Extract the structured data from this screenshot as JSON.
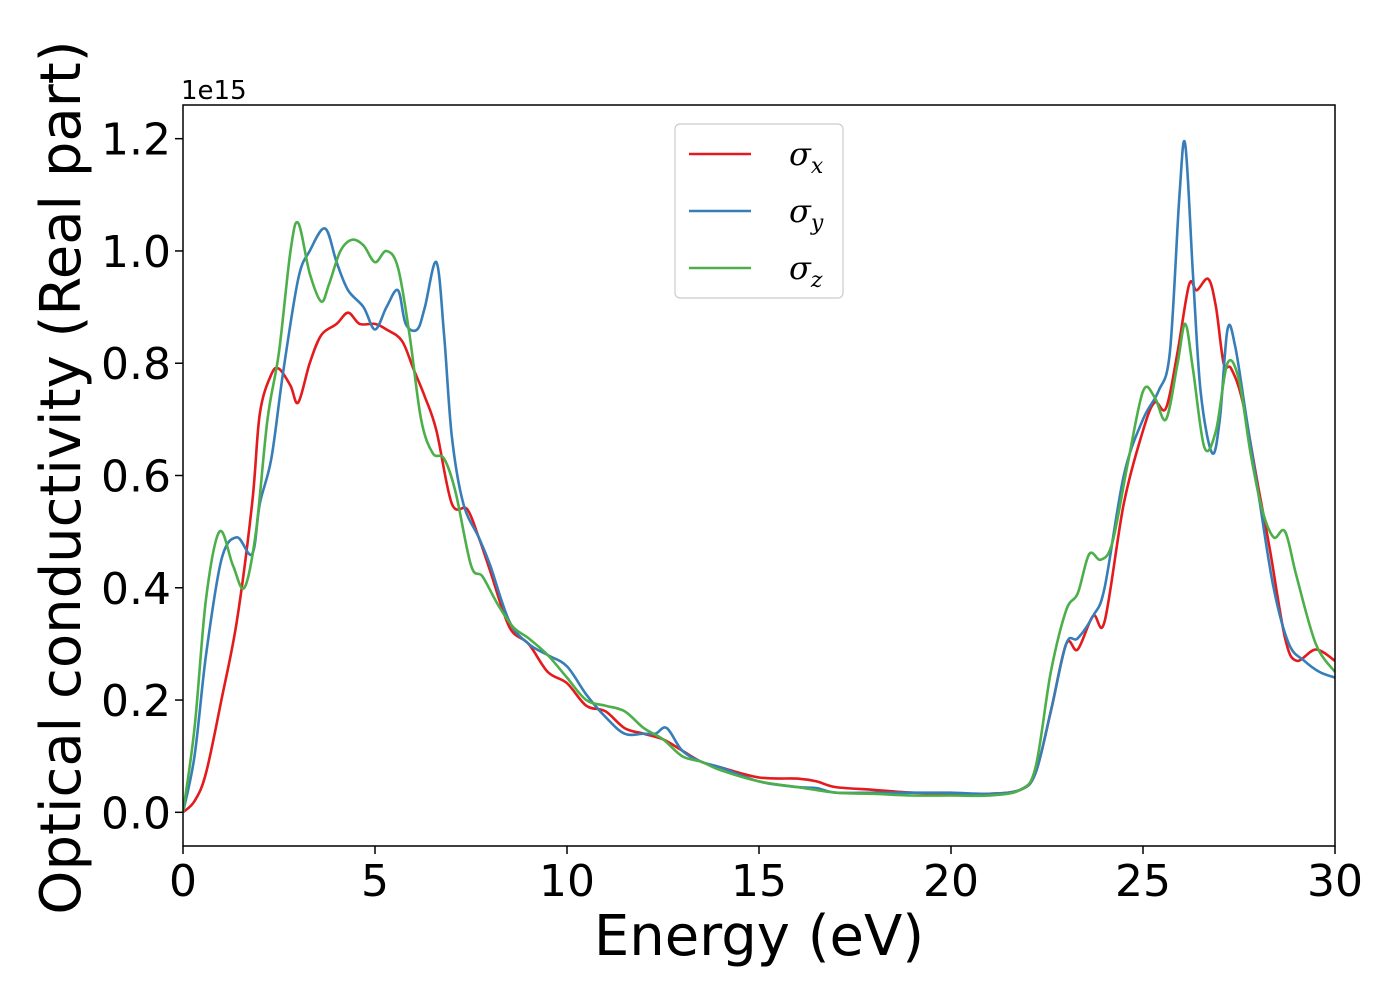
{
  "chart_data": {
    "type": "line",
    "xlabel": "Energy (eV)",
    "ylabel": "Optical conductivity (Real part)",
    "y_offset_label": "1e15",
    "xlim": [
      0,
      30
    ],
    "ylim": [
      -0.06,
      1.26
    ],
    "x_ticks": [
      0,
      5,
      10,
      15,
      20,
      25,
      30
    ],
    "x_tick_labels": [
      "0",
      "5",
      "10",
      "15",
      "20",
      "25",
      "30"
    ],
    "y_ticks": [
      0.0,
      0.2,
      0.4,
      0.6,
      0.8,
      1.0,
      1.2
    ],
    "y_tick_labels": [
      "0.0",
      "0.2",
      "0.4",
      "0.6",
      "0.8",
      "1.0",
      "1.2"
    ],
    "grid": false,
    "legend_position": "top-center",
    "series": [
      {
        "name": "σx",
        "legend_symbol": "σ",
        "legend_subscript": "x",
        "color": "#e41a1c",
        "x": [
          0,
          0.3,
          0.6,
          1.0,
          1.4,
          1.8,
          2.0,
          2.3,
          2.5,
          2.8,
          3.0,
          3.3,
          3.6,
          4.0,
          4.3,
          4.6,
          5.0,
          5.3,
          5.7,
          6.0,
          6.3,
          6.6,
          7.0,
          7.4,
          7.7,
          8.0,
          8.5,
          9.0,
          9.5,
          10.0,
          10.5,
          11.0,
          11.5,
          12.0,
          12.5,
          13.0,
          13.5,
          14.0,
          15.0,
          16.0,
          16.5,
          17.0,
          18.0,
          19.0,
          20.0,
          21.0,
          21.8,
          22.2,
          22.6,
          23.0,
          23.3,
          23.7,
          24.0,
          24.5,
          25.0,
          25.3,
          25.6,
          25.9,
          26.2,
          26.4,
          26.7,
          26.9,
          27.1,
          27.3,
          27.6,
          28.0,
          28.3,
          28.7,
          29.0,
          29.5,
          30.0
        ],
        "values": [
          0,
          0.02,
          0.07,
          0.2,
          0.34,
          0.55,
          0.71,
          0.78,
          0.79,
          0.76,
          0.73,
          0.8,
          0.85,
          0.87,
          0.89,
          0.87,
          0.87,
          0.86,
          0.84,
          0.79,
          0.74,
          0.68,
          0.55,
          0.54,
          0.49,
          0.43,
          0.33,
          0.3,
          0.25,
          0.23,
          0.19,
          0.18,
          0.15,
          0.14,
          0.13,
          0.11,
          0.09,
          0.08,
          0.062,
          0.06,
          0.055,
          0.045,
          0.04,
          0.035,
          0.033,
          0.033,
          0.04,
          0.07,
          0.18,
          0.3,
          0.29,
          0.35,
          0.34,
          0.55,
          0.68,
          0.73,
          0.72,
          0.82,
          0.94,
          0.93,
          0.95,
          0.9,
          0.8,
          0.79,
          0.73,
          0.58,
          0.47,
          0.31,
          0.27,
          0.29,
          0.27
        ]
      },
      {
        "name": "σy",
        "legend_symbol": "σ",
        "legend_subscript": "y",
        "color": "#377eb8",
        "x": [
          0,
          0.3,
          0.6,
          1.0,
          1.4,
          1.8,
          2.0,
          2.3,
          2.6,
          3.0,
          3.3,
          3.7,
          4.0,
          4.3,
          4.7,
          5.0,
          5.3,
          5.6,
          5.8,
          6.1,
          6.3,
          6.6,
          6.8,
          7.0,
          7.3,
          7.7,
          8.0,
          8.5,
          9.0,
          9.5,
          10.0,
          10.5,
          11.0,
          11.5,
          12.0,
          12.3,
          12.6,
          13.0,
          13.5,
          14.0,
          15.0,
          16.0,
          16.5,
          17.0,
          18.0,
          19.0,
          20.0,
          21.0,
          21.8,
          22.2,
          22.6,
          23.0,
          23.3,
          23.7,
          24.0,
          24.5,
          25.0,
          25.4,
          25.7,
          25.95,
          26.1,
          26.3,
          26.5,
          26.8,
          27.0,
          27.2,
          27.4,
          27.7,
          28.0,
          28.4,
          28.8,
          29.2,
          29.6,
          30.0
        ],
        "values": [
          0,
          0.1,
          0.28,
          0.45,
          0.49,
          0.46,
          0.55,
          0.63,
          0.78,
          0.95,
          1.0,
          1.04,
          0.98,
          0.93,
          0.9,
          0.86,
          0.9,
          0.93,
          0.87,
          0.86,
          0.9,
          0.98,
          0.85,
          0.67,
          0.55,
          0.49,
          0.44,
          0.34,
          0.3,
          0.28,
          0.26,
          0.21,
          0.17,
          0.14,
          0.14,
          0.14,
          0.15,
          0.11,
          0.09,
          0.08,
          0.055,
          0.045,
          0.043,
          0.035,
          0.035,
          0.035,
          0.035,
          0.033,
          0.04,
          0.07,
          0.18,
          0.3,
          0.31,
          0.35,
          0.4,
          0.6,
          0.7,
          0.75,
          0.82,
          1.1,
          1.19,
          0.96,
          0.75,
          0.64,
          0.7,
          0.86,
          0.83,
          0.7,
          0.57,
          0.4,
          0.3,
          0.27,
          0.25,
          0.24
        ]
      },
      {
        "name": "σz",
        "legend_symbol": "σ",
        "legend_subscript": "z",
        "color": "#4daf4a",
        "x": [
          0,
          0.3,
          0.6,
          0.95,
          1.3,
          1.6,
          1.9,
          2.2,
          2.5,
          2.8,
          3.0,
          3.3,
          3.6,
          3.8,
          4.1,
          4.4,
          4.7,
          5.0,
          5.3,
          5.6,
          5.9,
          6.2,
          6.5,
          6.8,
          7.1,
          7.5,
          7.8,
          8.2,
          8.6,
          9.0,
          9.5,
          10.0,
          10.5,
          11.0,
          11.5,
          12.0,
          12.5,
          13.0,
          13.5,
          14.0,
          15.0,
          16.0,
          17.0,
          18.0,
          19.0,
          20.0,
          21.0,
          21.8,
          22.2,
          22.6,
          23.0,
          23.3,
          23.6,
          23.9,
          24.2,
          24.6,
          25.0,
          25.3,
          25.6,
          25.9,
          26.1,
          26.3,
          26.6,
          26.9,
          27.2,
          27.5,
          27.8,
          28.1,
          28.4,
          28.7,
          29.0,
          29.5,
          30.0
        ],
        "values": [
          0,
          0.15,
          0.38,
          0.5,
          0.44,
          0.4,
          0.5,
          0.7,
          0.82,
          1.0,
          1.05,
          0.96,
          0.91,
          0.94,
          1.0,
          1.02,
          1.01,
          0.98,
          1.0,
          0.97,
          0.85,
          0.7,
          0.64,
          0.63,
          0.57,
          0.44,
          0.42,
          0.37,
          0.33,
          0.31,
          0.28,
          0.24,
          0.2,
          0.19,
          0.18,
          0.15,
          0.13,
          0.1,
          0.09,
          0.075,
          0.055,
          0.045,
          0.035,
          0.033,
          0.03,
          0.03,
          0.03,
          0.04,
          0.08,
          0.25,
          0.36,
          0.39,
          0.46,
          0.45,
          0.48,
          0.62,
          0.75,
          0.74,
          0.7,
          0.8,
          0.87,
          0.79,
          0.65,
          0.68,
          0.8,
          0.77,
          0.64,
          0.54,
          0.49,
          0.5,
          0.42,
          0.3,
          0.25
        ]
      }
    ]
  }
}
